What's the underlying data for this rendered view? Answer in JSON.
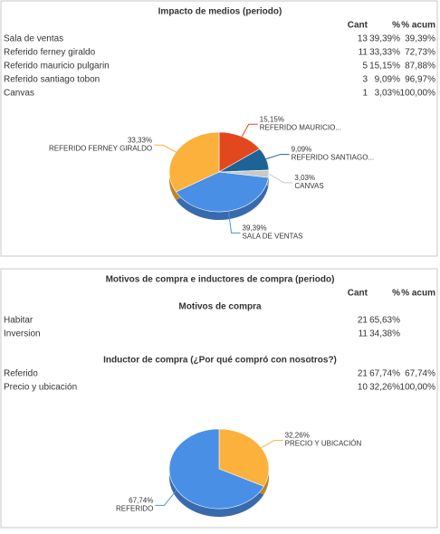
{
  "panels": [
    {
      "title": "Impacto de medios (periodo)",
      "columns": [
        "Cant",
        "%",
        "% acum"
      ],
      "sections": [
        {
          "rows": [
            [
              "Sala de ventas",
              13,
              "39,39%",
              "39,39%"
            ],
            [
              "Referido ferney giraldo",
              11,
              "33,33%",
              "72,73%"
            ],
            [
              "Referido mauricio pulgarin",
              5,
              "15,15%",
              "87,88%"
            ],
            [
              "Referido santiago tobon",
              3,
              "9,09%",
              "96,97%"
            ],
            [
              "Canvas",
              1,
              "3,03%",
              "100,00%"
            ]
          ]
        }
      ],
      "pie": {
        "type": "pie",
        "labels": [
          "REFERIDO MAURICIO...",
          "REFERIDO SANTIAGO...",
          "CANVAS",
          "SALA DE VENTAS",
          "REFERIDO FERNEY GIRALDO"
        ],
        "values": [
          15.15,
          9.09,
          3.03,
          39.39,
          33.33
        ],
        "value_labels": [
          "15,15%",
          "9,09%",
          "3,03%",
          "39,39%",
          "33,33%"
        ],
        "colors": [
          "#e2471d",
          "#1d6396",
          "#c9c9c9",
          "#4a8fe6",
          "#fbb13c"
        ]
      }
    },
    {
      "title": "Motivos de compra e inductores de compra (periodo)",
      "columns": [
        "Cant",
        "%",
        "% acum"
      ],
      "sections": [
        {
          "title": "Motivos de compra",
          "rows": [
            [
              "Habitar",
              21,
              "65,63%"
            ],
            [
              "Inversion",
              11,
              "34,38%"
            ]
          ]
        },
        {
          "title": "Inductor de compra (¿Por qué compró con nosotros?)",
          "rows": [
            [
              "Referido",
              21,
              "67,74%",
              "67,74%"
            ],
            [
              "Precio y ubicación",
              10,
              "32,26%",
              "100,00%"
            ]
          ]
        }
      ],
      "pie": {
        "type": "pie",
        "labels": [
          "PRECIO Y UBICACIÓN",
          "REFERIDO"
        ],
        "values": [
          32.26,
          67.74
        ],
        "value_labels": [
          "32,26%",
          "67,74%"
        ],
        "colors": [
          "#fbb13c",
          "#4a8fe6"
        ]
      }
    }
  ]
}
